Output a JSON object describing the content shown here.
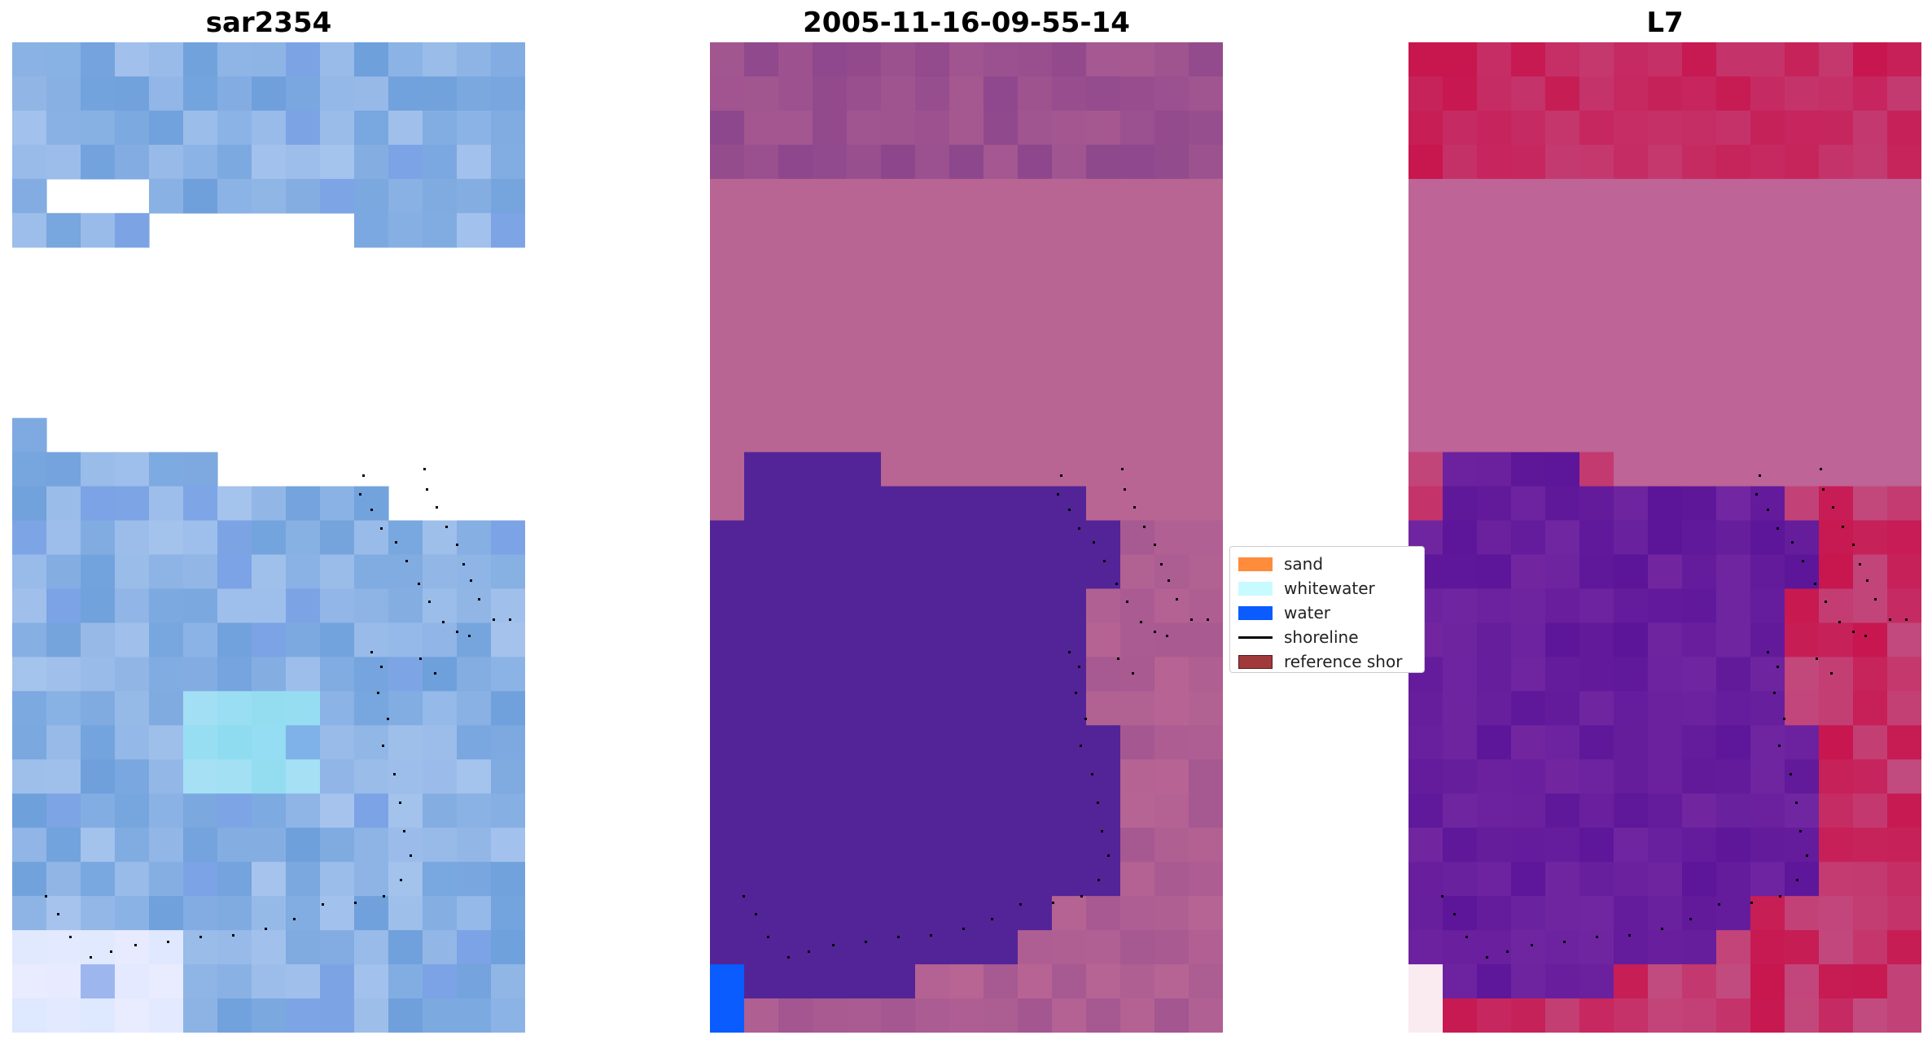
{
  "titles": {
    "left": "sar2354",
    "middle": "2005-11-16-09-55-14",
    "right": "L7"
  },
  "legend": {
    "items": [
      {
        "label": "sand",
        "color": "#ff8c3a",
        "kind": "patch"
      },
      {
        "label": "whitewater",
        "color": "#c8fbff",
        "kind": "patch"
      },
      {
        "label": "water",
        "color": "#0a5cff",
        "kind": "patch"
      },
      {
        "label": "shoreline",
        "color": "#000000",
        "kind": "line"
      },
      {
        "label": "reference shor",
        "color": "#a0393a",
        "kind": "patch"
      }
    ]
  },
  "colors": {
    "sar_base": "#6d9fdb",
    "classified_land": "#b86594",
    "classified_water": "#532497",
    "classified_water_class": "#0a5cff",
    "l7_red": "#c8154e",
    "l7_purple": "#5c1599",
    "shoreline_dots": "#000000"
  }
}
